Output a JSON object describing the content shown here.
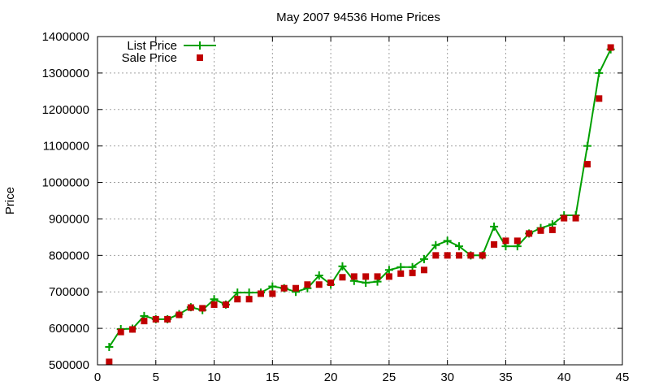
{
  "chart_data": {
    "type": "line",
    "title": "May 2007 94536 Home Prices",
    "xlabel": "",
    "ylabel": "Price",
    "xlim": [
      0,
      45
    ],
    "ylim": [
      500000,
      1400000
    ],
    "xticks": [
      0,
      5,
      10,
      15,
      20,
      25,
      30,
      35,
      40,
      45
    ],
    "yticks": [
      500000,
      600000,
      700000,
      800000,
      900000,
      1000000,
      1100000,
      1200000,
      1300000,
      1400000
    ],
    "grid": true,
    "legend_position": "top-left",
    "series": [
      {
        "name": "List Price",
        "style": "linespoints",
        "marker": "plus",
        "color": "#00a000",
        "x": [
          1,
          2,
          3,
          4,
          5,
          6,
          7,
          8,
          9,
          10,
          11,
          12,
          13,
          14,
          15,
          16,
          17,
          18,
          19,
          20,
          21,
          22,
          23,
          24,
          25,
          26,
          27,
          28,
          29,
          30,
          31,
          32,
          33,
          34,
          35,
          36,
          37,
          38,
          39,
          40,
          41,
          42,
          43,
          44
        ],
        "y": [
          549000,
          598000,
          599000,
          634000,
          625000,
          625000,
          639000,
          658000,
          650000,
          680000,
          665000,
          698000,
          698000,
          698000,
          715000,
          710000,
          700000,
          710000,
          745000,
          720000,
          770000,
          730000,
          725000,
          728000,
          760000,
          768000,
          768000,
          790000,
          828000,
          840000,
          825000,
          800000,
          800000,
          879000,
          825000,
          825000,
          860000,
          875000,
          885000,
          910000,
          910000,
          1100000,
          1300000,
          1365000
        ]
      },
      {
        "name": "Sale Price",
        "style": "points",
        "marker": "square",
        "color": "#c00000",
        "x": [
          1,
          2,
          3,
          4,
          5,
          6,
          7,
          8,
          9,
          10,
          11,
          12,
          13,
          14,
          15,
          16,
          17,
          18,
          19,
          20,
          21,
          22,
          23,
          24,
          25,
          26,
          27,
          28,
          29,
          30,
          31,
          32,
          33,
          34,
          35,
          36,
          37,
          38,
          39,
          40,
          41,
          42,
          43,
          44
        ],
        "y": [
          508000,
          590000,
          597000,
          620000,
          625000,
          625000,
          637000,
          657000,
          655000,
          665000,
          665000,
          680000,
          680000,
          695000,
          695000,
          710000,
          710000,
          720000,
          720000,
          725000,
          740000,
          742000,
          742000,
          742000,
          742000,
          750000,
          752000,
          760000,
          800000,
          800000,
          800000,
          800000,
          800000,
          830000,
          840000,
          840000,
          860000,
          868000,
          870000,
          902000,
          902000,
          1050000,
          1230000,
          1370000
        ]
      }
    ]
  }
}
